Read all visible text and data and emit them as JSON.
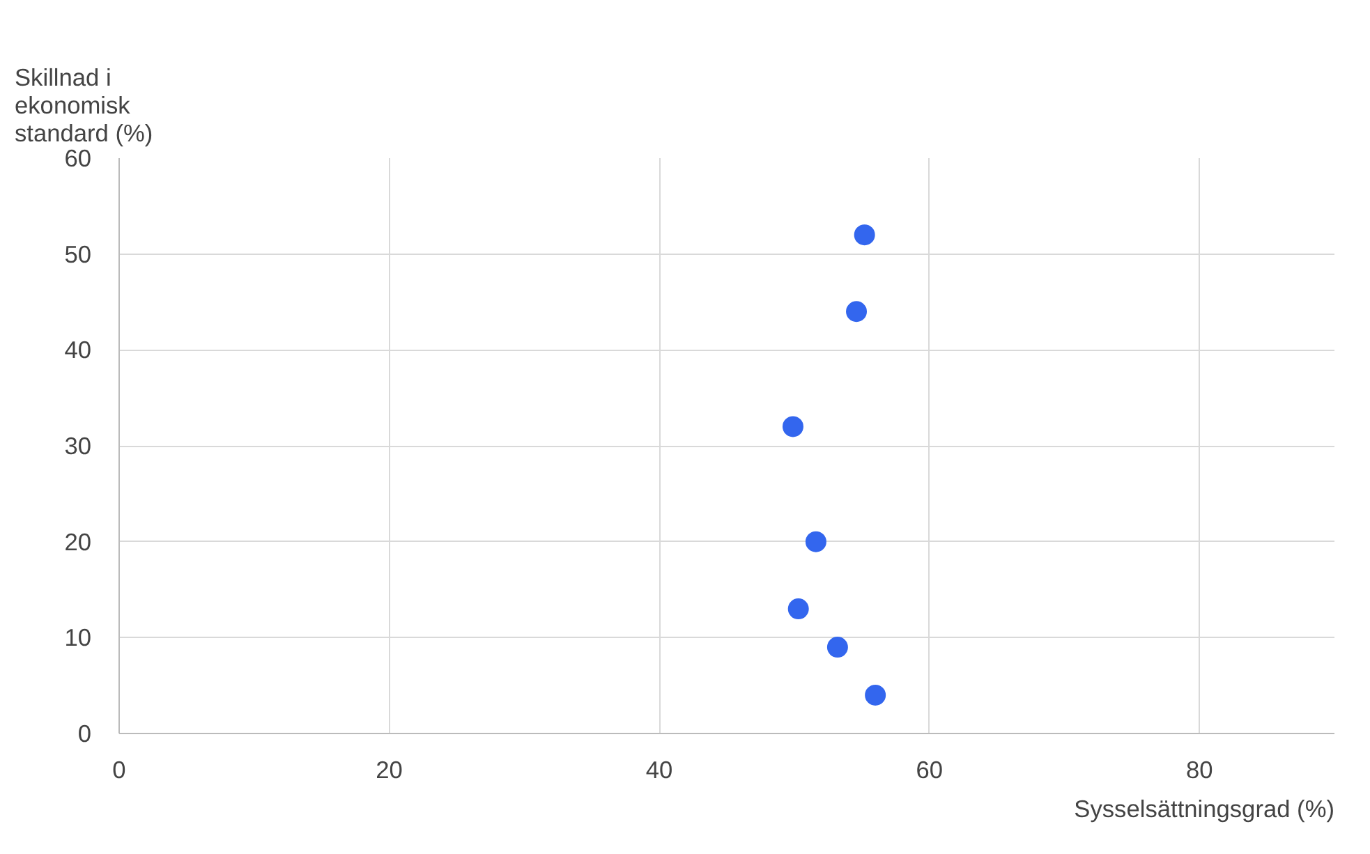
{
  "chart_data": {
    "type": "scatter",
    "xlabel": "Sysselsättningsgrad (%)",
    "ylabel": "Skillnad i ekonomisk standard (%)",
    "xlim": [
      0,
      90
    ],
    "ylim": [
      0,
      60
    ],
    "xticks": [
      0,
      20,
      40,
      60,
      80
    ],
    "yticks": [
      0,
      10,
      20,
      30,
      40,
      50,
      60
    ],
    "grid": true,
    "marker": "circle",
    "series": [
      {
        "color": "#3366ee",
        "x": [
          55.2,
          54.6,
          49.9,
          51.6,
          50.3,
          53.2,
          56.0
        ],
        "values": [
          52,
          44,
          32,
          20,
          13,
          9,
          4
        ]
      }
    ]
  }
}
